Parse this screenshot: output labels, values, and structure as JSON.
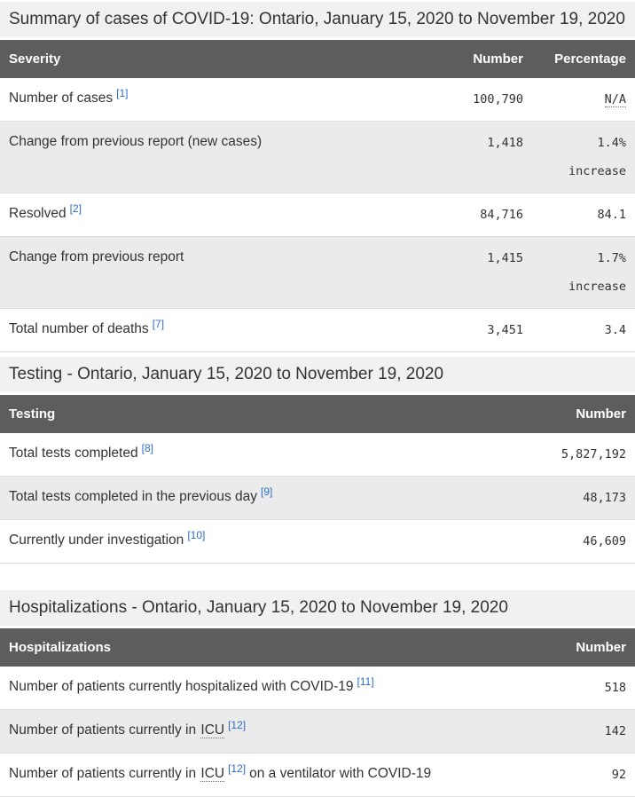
{
  "theme": {
    "header_bg": "#5d5d5d",
    "header_text": "#ffffff",
    "caption_bg": "#f1f1f1",
    "stripe_bg": "#ebebeb",
    "border_color": "#dddddd",
    "link_color": "#2b6cc8",
    "text_color": "#333333"
  },
  "tables": [
    {
      "caption": "Summary of cases of COVID-19: Ontario, January 15, 2020 to November 19, 2020",
      "columns": [
        "Severity",
        "Number",
        "Percentage"
      ],
      "rows": [
        {
          "label": "Number of cases",
          "footnote": "[1]",
          "number": "100,790",
          "percentage": "N/A"
        },
        {
          "label": "Change from previous report (new cases)",
          "number": "1,418",
          "percentage": "1.4%",
          "percentage_note": "increase"
        },
        {
          "label": "Resolved",
          "footnote": "[2]",
          "number": "84,716",
          "percentage": "84.1"
        },
        {
          "label": "Change from previous report",
          "number": "1,415",
          "percentage": "1.7%",
          "percentage_note": "increase"
        },
        {
          "label": "Total number of deaths",
          "footnote": "[7]",
          "number": "3,451",
          "percentage": "3.4"
        }
      ]
    },
    {
      "caption": "Testing - Ontario, January 15, 2020 to November 19, 2020",
      "columns": [
        "Testing",
        "Number"
      ],
      "rows": [
        {
          "label": "Total tests completed",
          "footnote": "[8]",
          "number": "5,827,192"
        },
        {
          "label": "Total tests completed in the previous day",
          "footnote": "[9]",
          "number": "48,173"
        },
        {
          "label": "Currently under investigation",
          "footnote": "[10]",
          "number": "46,609"
        }
      ]
    },
    {
      "caption": "Hospitalizations - Ontario, January 15, 2020 to November 19, 2020",
      "columns": [
        "Hospitalizations",
        "Number"
      ],
      "rows": [
        {
          "label": "Number of patients currently hospitalized with COVID-19",
          "footnote": "[11]",
          "number": "518"
        },
        {
          "label_pre": "Number of patients currently in",
          "abbr": "ICU",
          "footnote": "[12]",
          "number": "142"
        },
        {
          "label_pre": "Number of patients currently in",
          "abbr": "ICU",
          "footnote": "[12]",
          "label_post": "on a ventilator with COVID-19",
          "number": "92"
        }
      ]
    }
  ]
}
